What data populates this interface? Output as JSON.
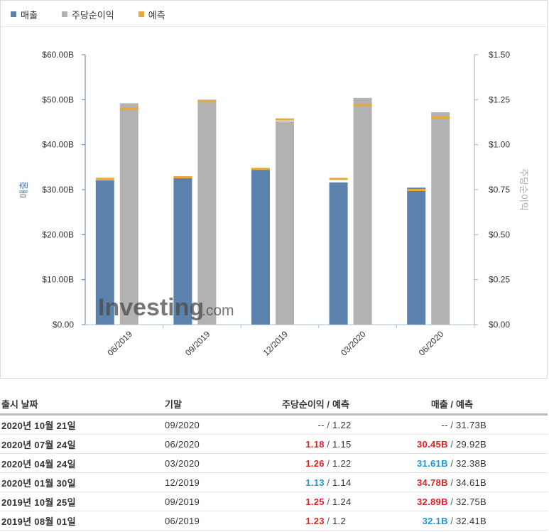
{
  "colors": {
    "revenue": "#5b82ad",
    "eps": "#b2b2b2",
    "forecast": "#e9a83a",
    "up": "#e51f24",
    "down": "#1d98d8"
  },
  "legend": [
    {
      "label": "매출",
      "color": "#5b82ad"
    },
    {
      "label": "주당순이익",
      "color": "#b2b2b2"
    },
    {
      "label": "예측",
      "color": "#e9a83a"
    }
  ],
  "watermark": {
    "brand": "Investing",
    "suffix": ".com"
  },
  "chart_data": {
    "type": "bar",
    "categories": [
      "06/2019",
      "09/2019",
      "12/2019",
      "03/2020",
      "06/2020"
    ],
    "series": [
      {
        "name": "매출",
        "axis": "left",
        "values": [
          32.1,
          32.89,
          34.78,
          31.61,
          30.45
        ],
        "forecast": [
          32.41,
          32.75,
          34.61,
          32.38,
          29.92
        ]
      },
      {
        "name": "주당순이익",
        "axis": "right",
        "values": [
          1.23,
          1.25,
          1.13,
          1.26,
          1.18
        ],
        "forecast": [
          1.2,
          1.24,
          1.14,
          1.22,
          1.15
        ]
      }
    ],
    "ylabel_left": "매출",
    "ylabel_right": "주당순이익",
    "ylim_left": [
      0,
      60
    ],
    "ylim_right": [
      0,
      1.5
    ],
    "yticks_left": [
      "$0.00",
      "$10.00B",
      "$20.00B",
      "$30.00B",
      "$40.00B",
      "$50.00B",
      "$60.00B"
    ],
    "yticks_right": [
      "$0.00",
      "$0.25",
      "$0.50",
      "$0.75",
      "$1.00",
      "$1.25",
      "$1.50"
    ],
    "grid": false,
    "legend_position": "top-left"
  },
  "table": {
    "headers": {
      "date": "출시 날짜",
      "period": "기말",
      "eps": "주당순이익 /",
      "eps_forecast": "예측",
      "revenue": "매출 /",
      "revenue_forecast": "예측"
    },
    "rows": [
      {
        "date": "2020년 10월 21일",
        "period": "09/2020",
        "eps": "--",
        "eps_forecast": "1.22",
        "eps_dir": "neutral",
        "revenue": "--",
        "revenue_forecast": "31.73B",
        "rev_dir": "neutral"
      },
      {
        "date": "2020년 07월 24일",
        "period": "06/2020",
        "eps": "1.18",
        "eps_forecast": "1.15",
        "eps_dir": "up",
        "revenue": "30.45B",
        "revenue_forecast": "29.92B",
        "rev_dir": "up"
      },
      {
        "date": "2020년 04월 24일",
        "period": "03/2020",
        "eps": "1.26",
        "eps_forecast": "1.22",
        "eps_dir": "up",
        "revenue": "31.61B",
        "revenue_forecast": "32.38B",
        "rev_dir": "down"
      },
      {
        "date": "2020년 01월 30일",
        "period": "12/2019",
        "eps": "1.13",
        "eps_forecast": "1.14",
        "eps_dir": "down",
        "revenue": "34.78B",
        "revenue_forecast": "34.61B",
        "rev_dir": "up"
      },
      {
        "date": "2019년 10월 25일",
        "period": "09/2019",
        "eps": "1.25",
        "eps_forecast": "1.24",
        "eps_dir": "up",
        "revenue": "32.89B",
        "revenue_forecast": "32.75B",
        "rev_dir": "up"
      },
      {
        "date": "2019년 08월 01일",
        "period": "06/2019",
        "eps": "1.23",
        "eps_forecast": "1.2",
        "eps_dir": "up",
        "revenue": "32.1B",
        "revenue_forecast": "32.41B",
        "rev_dir": "down"
      }
    ]
  }
}
